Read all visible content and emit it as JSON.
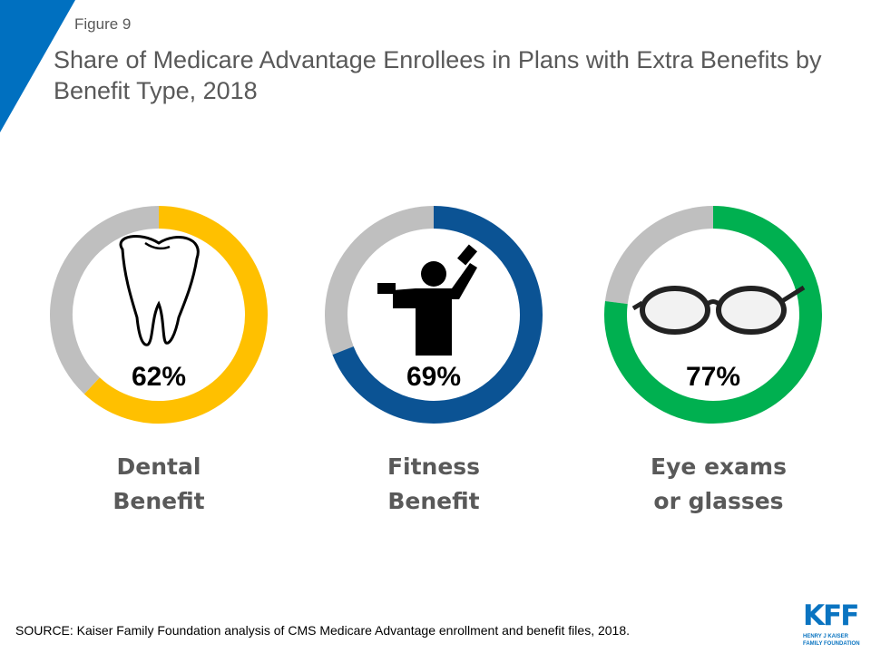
{
  "header": {
    "figure_label": "Figure 9",
    "title": "Share of Medicare Advantage Enrollees in Plans with Extra Benefits by Benefit Type, 2018"
  },
  "chart_data": {
    "type": "pie",
    "title": "Share of Medicare Advantage Enrollees in Plans with Extra Benefits by Benefit Type, 2018",
    "donut": true,
    "series": [
      {
        "category": "Dental Benefit",
        "label_lines": [
          "Dental",
          "Benefit"
        ],
        "value": 62,
        "value_label": "62%",
        "color": "#ffc000",
        "icon": "tooth-icon"
      },
      {
        "category": "Fitness Benefit",
        "label_lines": [
          "Fitness",
          "Benefit"
        ],
        "value": 69,
        "value_label": "69%",
        "color": "#0b5394",
        "icon": "weightlifter-icon"
      },
      {
        "category": "Eye exams or glasses",
        "label_lines": [
          "Eye exams",
          "or glasses"
        ],
        "value": 77,
        "value_label": "77%",
        "color": "#00b050",
        "icon": "glasses-icon"
      }
    ],
    "remainder_color": "#bfbfbf"
  },
  "footer": {
    "source": "SOURCE: Kaiser Family Foundation analysis of CMS Medicare Advantage enrollment and benefit files, 2018.",
    "logo": {
      "mark": "KFF",
      "line1": "HENRY J KAISER",
      "line2": "FAMILY FOUNDATION"
    }
  },
  "colors": {
    "accent": "#0070c0",
    "text": "#595959"
  }
}
